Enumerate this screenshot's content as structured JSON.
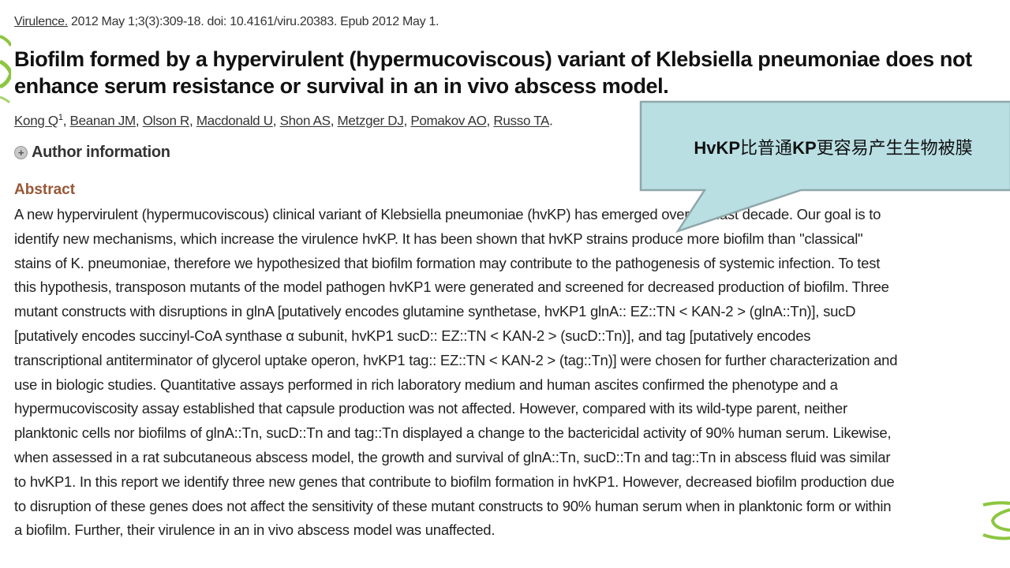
{
  "citation": {
    "journal": "Virulence.",
    "details": " 2012 May 1;3(3):309-18. doi: 10.4161/viru.20383. Epub 2012 May 1."
  },
  "title": "Biofilm formed by a hypervirulent (hypermucoviscous) variant of Klebsiella pneumoniae does not enhance serum resistance or survival in an in vivo abscess model.",
  "authors": [
    "Kong Q",
    "Beanan JM",
    "Olson R",
    "Macdonald U",
    "Shon AS",
    "Metzger DJ",
    "Pomakov AO",
    "Russo TA"
  ],
  "first_author_affiliation": "1",
  "author_info_label": "Author information",
  "abstract": {
    "heading": "Abstract",
    "lines": [
      "A new hypervirulent (hypermucoviscous) clinical variant of Klebsiella pneumoniae (hvKP) has emerged over the last decade. Our goal is to",
      "identify new mechanisms, which increase the virulence hvKP. It has been shown that hvKP strains produce more biofilm than \"classical\"",
      "stains of K. pneumoniae, therefore we hypothesized that biofilm formation may contribute to the pathogenesis of systemic infection. To test",
      "this hypothesis, transposon mutants of the model pathogen hvKP1 were generated and screened for decreased production of biofilm. Three",
      "mutant constructs with disruptions in glnA [putatively encodes glutamine synthetase, hvKP1 glnA:: EZ::TN < KAN-2 > (glnA::Tn)], sucD",
      "[putatively encodes succinyl-CoA synthase α subunit, hvKP1 sucD:: EZ::TN < KAN-2 > (sucD::Tn)], and tag [putatively encodes",
      "transcriptional antiterminator of glycerol uptake operon, hvKP1 tag:: EZ::TN < KAN-2 > (tag::Tn)] were chosen for further characterization and",
      "use in biologic studies. Quantitative assays performed in rich laboratory medium and human ascites confirmed the phenotype and a",
      "hypermucoviscosity assay established that capsule production was not affected. However, compared with its wild-type parent, neither",
      "planktonic cells nor biofilms of glnA::Tn, sucD::Tn and tag::Tn displayed a change to the bactericidal activity of 90% human serum. Likewise,",
      "when assessed in a rat subcutaneous abscess model, the growth and survival of glnA::Tn, sucD::Tn and tag::Tn in abscess fluid was similar",
      "to hvKP1. In this report we identify three new genes that contribute to biofilm formation in hvKP1. However, decreased biofilm production due",
      "to disruption of these genes does not affect the sensitivity of these mutant constructs to 90% human serum when in planktonic form or within",
      "a biofilm. Further, their virulence in an in vivo abscess model was unaffected."
    ]
  },
  "callout": {
    "text": "HvKP比普通KP更容易产生生物被膜",
    "fill": "#b9dfe3",
    "stroke": "#8ea7aa"
  },
  "colors": {
    "abstract_heading": "#985735",
    "logo_green": "#8cc63f"
  }
}
